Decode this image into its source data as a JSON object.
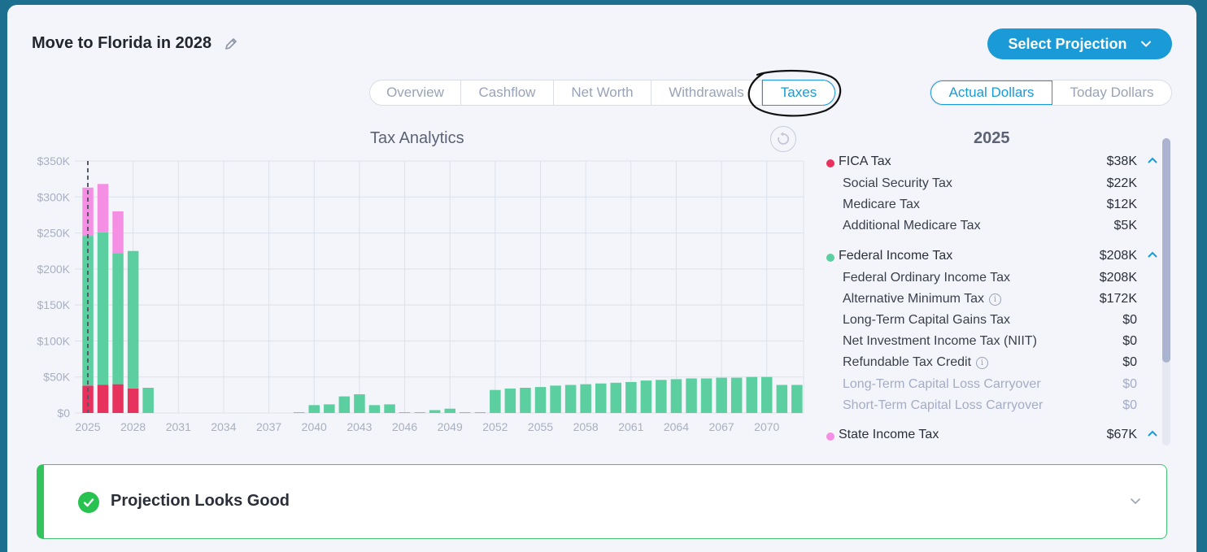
{
  "header": {
    "title": "Move to Florida in 2028",
    "select_projection": "Select Projection"
  },
  "tabs": [
    {
      "label": "Overview",
      "active": false
    },
    {
      "label": "Cashflow",
      "active": false
    },
    {
      "label": "Net Worth",
      "active": false
    },
    {
      "label": "Withdrawals",
      "active": false
    },
    {
      "label": "Taxes",
      "active": true
    }
  ],
  "dollar_toggle": {
    "actual": "Actual Dollars",
    "today": "Today Dollars",
    "selected": "actual"
  },
  "chart_title": "Tax Analytics",
  "colors": {
    "accent": "#1a9ad6",
    "fica": "#e8325e",
    "federal": "#5ccfa0",
    "state": "#f58fe4",
    "success": "#27c250"
  },
  "breakdown": {
    "year": "2025",
    "groups": [
      {
        "name": "FICA Tax",
        "value": "$38K",
        "color": "#e8325e",
        "items": [
          {
            "name": "Social Security Tax",
            "value": "$22K"
          },
          {
            "name": "Medicare Tax",
            "value": "$12K"
          },
          {
            "name": "Additional Medicare Tax",
            "value": "$5K"
          }
        ]
      },
      {
        "name": "Federal Income Tax",
        "value": "$208K",
        "color": "#5ccfa0",
        "items": [
          {
            "name": "Federal Ordinary Income Tax",
            "value": "$208K"
          },
          {
            "name": "Alternative Minimum Tax",
            "value": "$172K",
            "info": true
          },
          {
            "name": "Long-Term Capital Gains Tax",
            "value": "$0"
          },
          {
            "name": "Net Investment Income Tax (NIIT)",
            "value": "$0"
          },
          {
            "name": "Refundable Tax Credit",
            "value": "$0",
            "info": true
          },
          {
            "name": "Long-Term Capital Loss Carryover",
            "value": "$0",
            "muted": true
          },
          {
            "name": "Short-Term Capital Loss Carryover",
            "value": "$0",
            "muted": true
          }
        ]
      },
      {
        "name": "State Income Tax",
        "value": "$67K",
        "color": "#f58fe4",
        "items": []
      }
    ]
  },
  "status": {
    "text": "Projection Looks Good"
  },
  "chart_data": {
    "type": "bar",
    "title": "Tax Analytics",
    "stacked": true,
    "ylim": [
      0,
      350000
    ],
    "y_ticks": [
      "$0",
      "$50K",
      "$100K",
      "$150K",
      "$200K",
      "$250K",
      "$300K",
      "$350K"
    ],
    "x_ticks": [
      "2025",
      "2028",
      "2031",
      "2034",
      "2037",
      "2040",
      "2043",
      "2046",
      "2049",
      "2052",
      "2055",
      "2058",
      "2061",
      "2064",
      "2067",
      "2070"
    ],
    "current_year": 2025,
    "categories": [
      2025,
      2026,
      2027,
      2028,
      2029,
      2030,
      2031,
      2032,
      2033,
      2034,
      2035,
      2036,
      2037,
      2038,
      2039,
      2040,
      2041,
      2042,
      2043,
      2044,
      2045,
      2046,
      2047,
      2048,
      2049,
      2050,
      2051,
      2052,
      2053,
      2054,
      2055,
      2056,
      2057,
      2058,
      2059,
      2060,
      2061,
      2062,
      2063,
      2064,
      2065,
      2066,
      2067,
      2068,
      2069,
      2070,
      2071,
      2072
    ],
    "series": [
      {
        "name": "FICA Tax",
        "color": "#e8325e",
        "values": [
          38000,
          39000,
          40000,
          34000,
          0,
          0,
          0,
          0,
          0,
          0,
          0,
          0,
          0,
          0,
          0,
          0,
          0,
          0,
          0,
          0,
          0,
          0,
          0,
          0,
          0,
          0,
          0,
          0,
          0,
          0,
          0,
          0,
          0,
          0,
          0,
          0,
          0,
          0,
          0,
          0,
          0,
          0,
          0,
          0,
          0,
          0,
          0,
          0
        ]
      },
      {
        "name": "Federal Income Tax",
        "color": "#5ccfa0",
        "values": [
          208000,
          212000,
          182000,
          191000,
          35000,
          0,
          0,
          0,
          0,
          0,
          0,
          0,
          0,
          0,
          1000,
          11000,
          12000,
          23000,
          26000,
          11000,
          12000,
          1000,
          1000,
          4000,
          6000,
          1000,
          1000,
          32000,
          34000,
          35000,
          36000,
          38000,
          39000,
          40000,
          41000,
          42000,
          43000,
          45000,
          46000,
          47000,
          48000,
          48000,
          49000,
          49000,
          50000,
          50000,
          39000,
          39000
        ]
      },
      {
        "name": "State Income Tax",
        "color": "#f58fe4",
        "values": [
          67000,
          67000,
          58000,
          0,
          0,
          0,
          0,
          0,
          0,
          0,
          0,
          0,
          0,
          0,
          0,
          0,
          0,
          0,
          0,
          0,
          0,
          0,
          0,
          0,
          0,
          0,
          0,
          0,
          0,
          0,
          0,
          0,
          0,
          0,
          0,
          0,
          0,
          0,
          0,
          0,
          0,
          0,
          0,
          0,
          0,
          0,
          0,
          0
        ]
      }
    ]
  }
}
